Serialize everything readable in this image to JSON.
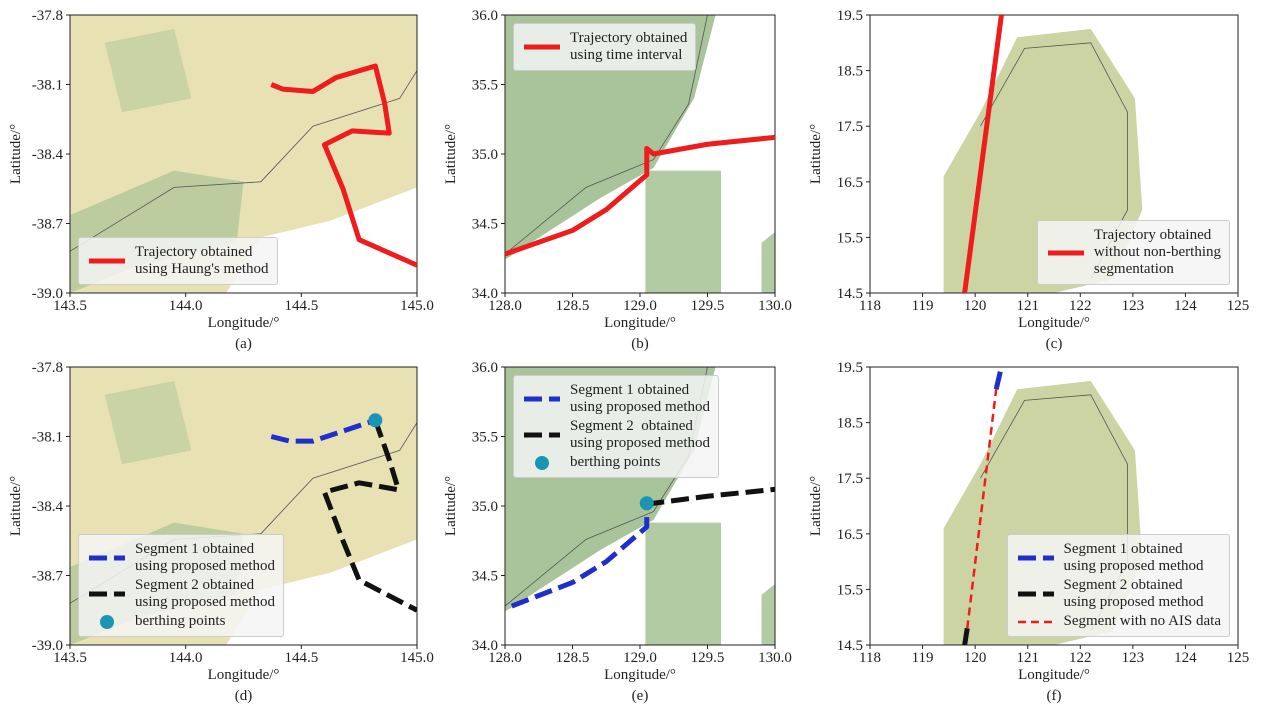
{
  "chart_data": [
    {
      "type": "line",
      "caption": "(a)",
      "xlabel": "Longitude/°",
      "ylabel": "Latitude/°",
      "xlim": [
        143.5,
        145.0
      ],
      "ylim": [
        -39.0,
        -37.8
      ],
      "xticks": [
        143.5,
        {
          "value": 144,
          "label": "144.0"
        },
        144.5,
        {
          "value": 145,
          "label": "145.0"
        }
      ],
      "yticks": [
        {
          "value": -39,
          "label": "-39.0"
        },
        -38.7,
        -38.4,
        -38.1,
        -37.8
      ],
      "legend": "lower left",
      "series": [
        {
          "name": "Trajectory obtained\nusing Haung's method",
          "color": "#ee1c1c",
          "style": "solid",
          "x": [
            144.37,
            144.42,
            144.55,
            144.65,
            144.82,
            144.86,
            144.88,
            144.72,
            144.6,
            144.68,
            144.75,
            145.0
          ],
          "y": [
            -38.1,
            -38.12,
            -38.13,
            -38.07,
            -38.02,
            -38.18,
            -38.31,
            -38.3,
            -38.36,
            -38.55,
            -38.77,
            -38.88
          ]
        }
      ]
    },
    {
      "type": "line",
      "caption": "(b)",
      "xlabel": "Longitude/°",
      "ylabel": "Latitude/°",
      "xlim": [
        128.0,
        130.0
      ],
      "ylim": [
        34.0,
        36.0
      ],
      "xticks": [
        {
          "value": 128,
          "label": "128.0"
        },
        128.5,
        {
          "value": 129,
          "label": "129.0"
        },
        129.5,
        {
          "value": 130,
          "label": "130.0"
        }
      ],
      "yticks": [
        {
          "value": 34,
          "label": "34.0"
        },
        34.5,
        {
          "value": 35,
          "label": "35.0"
        },
        35.5,
        {
          "value": 36,
          "label": "36.0"
        }
      ],
      "legend": "upper left",
      "series": [
        {
          "name": "Trajectory obtained\nusing time interval",
          "color": "#ee1c1c",
          "style": "solid",
          "x": [
            128.0,
            128.5,
            128.75,
            129.05,
            129.05,
            129.1,
            129.5,
            130.0
          ],
          "y": [
            34.28,
            34.45,
            34.6,
            34.85,
            35.04,
            35.0,
            35.07,
            35.12
          ]
        }
      ]
    },
    {
      "type": "line",
      "caption": "(c)",
      "xlabel": "Longitude/°",
      "ylabel": "Latitude/°",
      "xlim": [
        118,
        125
      ],
      "ylim": [
        14.5,
        19.5
      ],
      "xticks": [
        118,
        119,
        120,
        121,
        122,
        123,
        124,
        125
      ],
      "yticks": [
        14.5,
        15.5,
        16.5,
        17.5,
        18.5,
        19.5
      ],
      "legend": "lower right",
      "series": [
        {
          "name": "Trajectory obtained\nwithout non-berthing\nsegmentation",
          "color": "#ee1c1c",
          "style": "solid",
          "x": [
            119.8,
            120.5
          ],
          "y": [
            14.5,
            19.5
          ]
        }
      ]
    },
    {
      "type": "line",
      "caption": "(d)",
      "xlabel": "Longitude/°",
      "ylabel": "Latitude/°",
      "xlim": [
        143.5,
        145.0
      ],
      "ylim": [
        -39.0,
        -37.8
      ],
      "xticks": [
        143.5,
        {
          "value": 144,
          "label": "144.0"
        },
        144.5,
        {
          "value": 145,
          "label": "145.0"
        }
      ],
      "yticks": [
        {
          "value": -39,
          "label": "-39.0"
        },
        -38.7,
        -38.4,
        -38.1,
        -37.8
      ],
      "legend": "lower left",
      "series": [
        {
          "name": "Segment 1 obtained\nusing proposed method",
          "color": "#1f2fcc",
          "style": "dashed",
          "x": [
            144.37,
            144.45,
            144.55,
            144.82
          ],
          "y": [
            -38.1,
            -38.12,
            -38.12,
            -38.03
          ]
        },
        {
          "name": "Segment 2 obtained\nusing proposed method",
          "color": "#111111",
          "style": "dashed",
          "x": [
            144.82,
            144.88,
            144.92,
            144.75,
            144.6,
            144.68,
            144.75,
            145.0
          ],
          "y": [
            -38.03,
            -38.2,
            -38.33,
            -38.3,
            -38.34,
            -38.55,
            -38.72,
            -38.85
          ]
        },
        {
          "name": "berthing points",
          "color": "#1a96b4",
          "style": "points",
          "x": [
            144.82
          ],
          "y": [
            -38.03
          ]
        }
      ]
    },
    {
      "type": "line",
      "caption": "(e)",
      "xlabel": "Longitude/°",
      "ylabel": "Latitude/°",
      "xlim": [
        128.0,
        130.0
      ],
      "ylim": [
        34.0,
        36.0
      ],
      "xticks": [
        {
          "value": 128,
          "label": "128.0"
        },
        128.5,
        {
          "value": 129,
          "label": "129.0"
        },
        129.5,
        {
          "value": 130,
          "label": "130.0"
        }
      ],
      "yticks": [
        {
          "value": 34,
          "label": "34.0"
        },
        34.5,
        {
          "value": 35,
          "label": "35.0"
        },
        35.5,
        {
          "value": 36,
          "label": "36.0"
        }
      ],
      "legend": "upper left",
      "series": [
        {
          "name": "Segment 1 obtained\nusing proposed method",
          "color": "#1f2fcc",
          "style": "dashed",
          "x": [
            128.05,
            128.5,
            128.75,
            129.05,
            129.05
          ],
          "y": [
            34.28,
            34.45,
            34.6,
            34.85,
            35.0
          ]
        },
        {
          "name": "Segment 2  obtained\nusing proposed method",
          "color": "#111111",
          "style": "dashed",
          "x": [
            129.05,
            129.1,
            129.5,
            130.0
          ],
          "y": [
            35.0,
            35.02,
            35.07,
            35.12
          ]
        },
        {
          "name": "berthing points",
          "color": "#1a96b4",
          "style": "points",
          "x": [
            129.05
          ],
          "y": [
            35.02
          ]
        }
      ]
    },
    {
      "type": "line",
      "caption": "(f)",
      "xlabel": "Longitude/°",
      "ylabel": "Latitude/°",
      "xlim": [
        118,
        125
      ],
      "ylim": [
        14.5,
        19.5
      ],
      "xticks": [
        118,
        119,
        120,
        121,
        122,
        123,
        124,
        125
      ],
      "yticks": [
        14.5,
        15.5,
        16.5,
        17.5,
        18.5,
        19.5
      ],
      "legend": "lower right",
      "series": [
        {
          "name": "Segment 1 obtained\nusing proposed method",
          "color": "#1f2fcc",
          "style": "dashed",
          "x": [
            120.4,
            120.5
          ],
          "y": [
            19.1,
            19.5
          ]
        },
        {
          "name": "Segment 2 obtained\nusing proposed method",
          "color": "#111111",
          "style": "dashed",
          "x": [
            119.8,
            119.85
          ],
          "y": [
            14.5,
            14.8
          ]
        },
        {
          "name": "Segment with no AIS data",
          "color": "#ee1c1c",
          "style": "thin-dashed",
          "x": [
            119.85,
            120.4
          ],
          "y": [
            14.8,
            19.1
          ]
        }
      ]
    }
  ]
}
